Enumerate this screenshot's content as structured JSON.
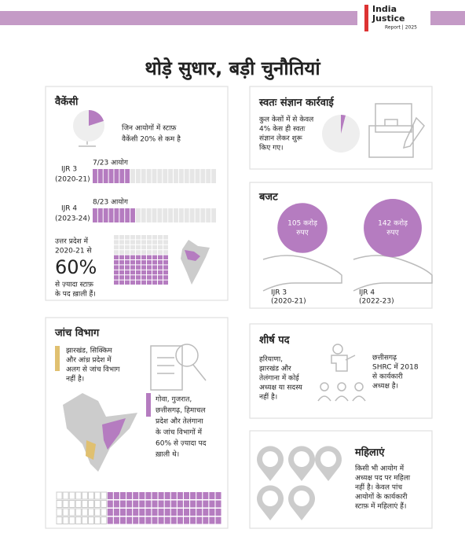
{
  "header": {
    "logo_line1": "India",
    "logo_line2": "Justice",
    "logo_line3": "Report | 2025"
  },
  "title": "थोड़े सुधार, बड़ी चुनौतियां",
  "vacancy": {
    "heading": "वैकेंसी",
    "note": [
      "जिन आयोगों में स्टाफ़",
      "वैकेंसी 20% से कम है"
    ],
    "note_percent": 20,
    "rows": [
      {
        "period": "IJR 3",
        "years": "(2020-21)",
        "label": "7/23 आयोग",
        "count": 7,
        "total": 23
      },
      {
        "period": "IJR 4",
        "years": "(2023-24)",
        "label": "8/23 आयोग",
        "count": 8,
        "total": 23
      }
    ],
    "up_text": [
      "उत्तर प्रदेश में",
      "2020-21 से"
    ],
    "up_value": 60,
    "up_value_label": "60%",
    "up_caption": [
      "से ज़्यादा स्टाफ़",
      "के पद ख़ाली हैं।"
    ]
  },
  "suo_motu": {
    "heading": "स्वतः संज्ञान कार्रवाई",
    "text": [
      "कुल केसों में से केवल",
      "4% केस ही स्वतः",
      "संज्ञान लेकर शुरू",
      "किए गए।"
    ],
    "percent": 4
  },
  "budget": {
    "heading": "बजट",
    "items": [
      {
        "value": 105,
        "value_label": "105 करोड़",
        "unit": "रुपए",
        "period": "IJR 3",
        "years": "(2020-21)"
      },
      {
        "value": 142,
        "value_label": "142 करोड़",
        "unit": "रुपए",
        "period": "IJR 4",
        "years": "(2022-23)"
      }
    ]
  },
  "investigation": {
    "heading": "जांच विभाग",
    "note1": [
      "झारखंड, सिक्किम",
      "और आंध्र प्रदेश में",
      "अलग से जांच विभाग",
      "नहीं है।"
    ],
    "note2": [
      "गोवा, गुजरात,",
      "छत्तीसगढ़, हिमाचल",
      "प्रदेश और तेलंगाना",
      "के जांच विभागों में",
      "60% से ज़्यादा पद",
      "ख़ाली थे।"
    ]
  },
  "top_posts": {
    "heading": "शीर्ष पद",
    "left": [
      "हरियाणा,",
      "झारखंड और",
      "तेलंगाना में कोई",
      "अध्यक्ष या सदस्य",
      "नहीं है।"
    ],
    "right": [
      "छत्तीसगढ़",
      "SHRC में 2018",
      "से कार्यकारी",
      "अध्यक्ष है।"
    ]
  },
  "women": {
    "heading": "महिलाएं",
    "text": [
      "किसी भी आयोग में",
      "अध्यक्ष पद पर महिला",
      "नहीं है। केवल पांच",
      "आयोगों के कार्यकारी",
      "स्टाफ़ में महिलाएं हैं।"
    ]
  }
}
